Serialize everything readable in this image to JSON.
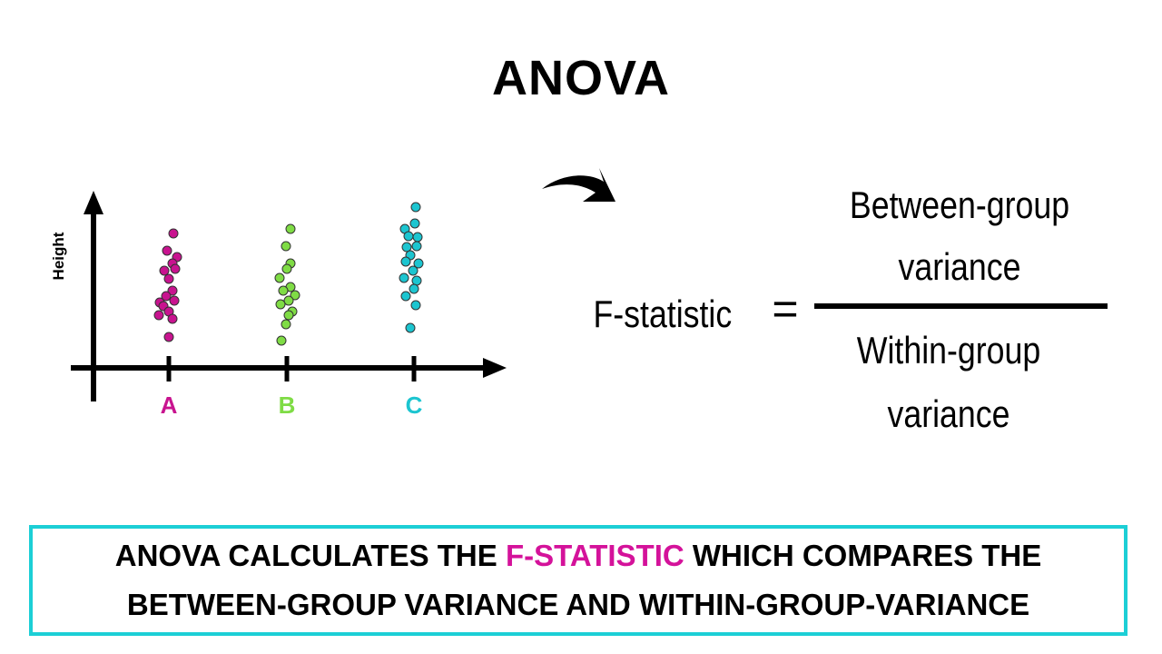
{
  "title": "ANOVA",
  "plot": {
    "y_label": "Height",
    "groups": [
      {
        "label": "A",
        "color": "#c8138f"
      },
      {
        "label": "B",
        "color": "#7fdc45"
      },
      {
        "label": "C",
        "color": "#1cc5d0"
      }
    ]
  },
  "formula": {
    "lhs": "F-statistic",
    "operator": "=",
    "numerator": [
      "Between-group",
      "variance"
    ],
    "denominator": [
      "Within-group",
      "variance"
    ]
  },
  "caption": {
    "parts": [
      "ANOVA CALCULATES THE ",
      "F-STATISTIC",
      " WHICH COMPARES THE BETWEEN-GROUP VARIANCE AND WITHIN-GROUP-VARIANCE"
    ],
    "highlight_color": "#d4129a",
    "border_color": "#1ccfd6"
  }
}
